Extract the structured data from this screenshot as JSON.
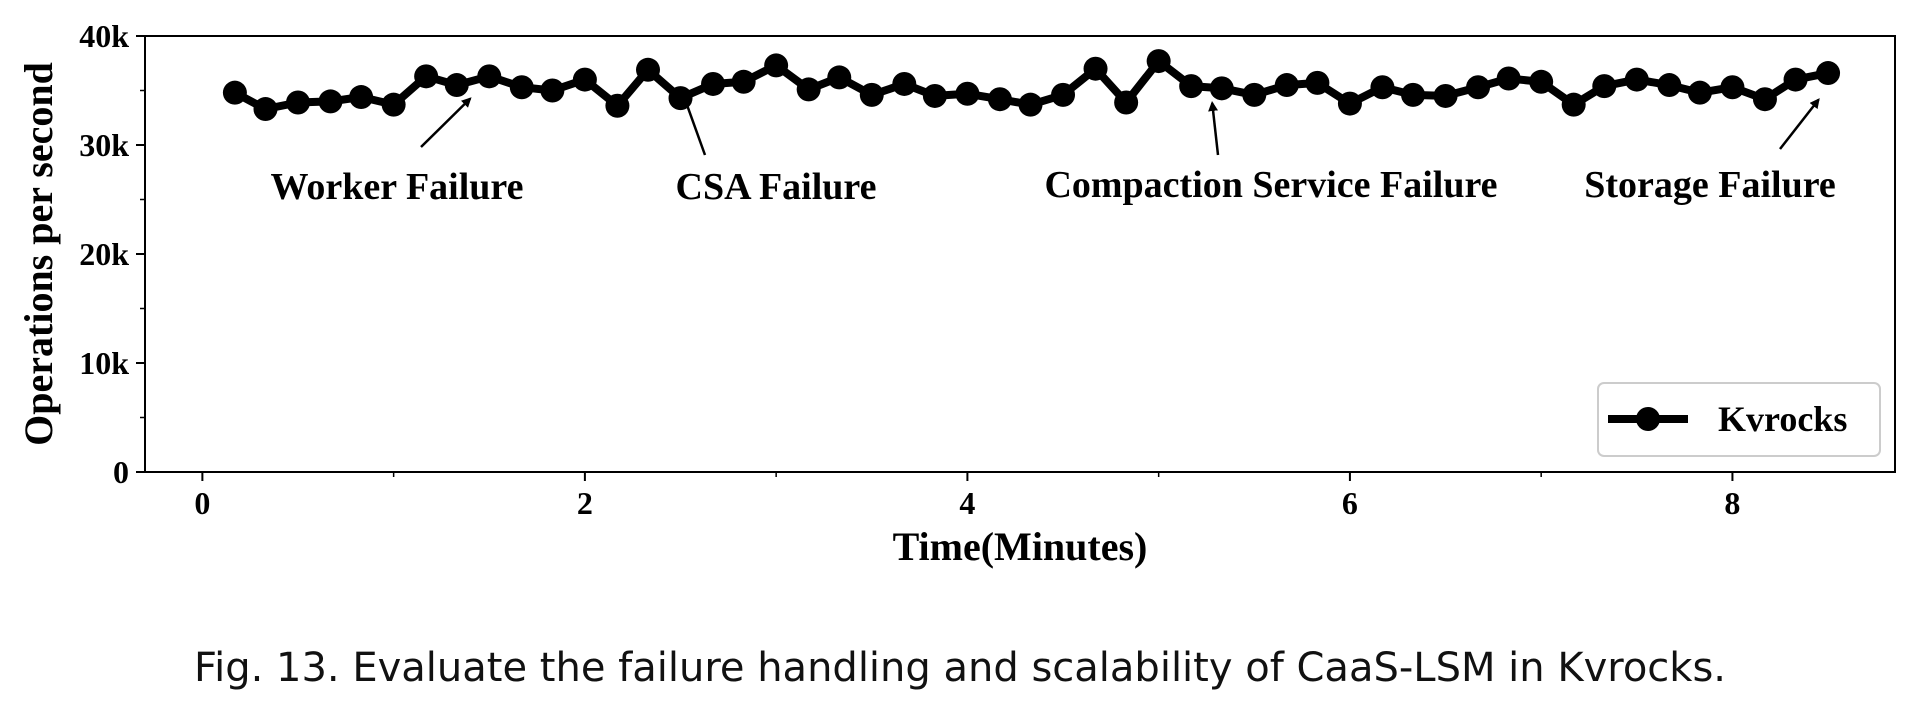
{
  "caption": "Fig. 13.  Evaluate the failure handling and scalability of CaaS-LSM in Kvrocks.",
  "chart_data": {
    "type": "line",
    "xlabel": "Time(Minutes)",
    "ylabel": "Operations per second",
    "xlim": [
      -0.3,
      8.85
    ],
    "ylim": [
      0,
      40000
    ],
    "xticks": [
      0,
      2,
      4,
      6,
      8
    ],
    "yticks": [
      0,
      10000,
      20000,
      30000,
      40000
    ],
    "ytick_labels": [
      "0",
      "10k",
      "20k",
      "30k",
      "40k"
    ],
    "legend": {
      "position": "lower-right",
      "entries": [
        "Kvrocks"
      ]
    },
    "series": [
      {
        "name": "Kvrocks",
        "color": "#000000",
        "x": [
          0.17,
          0.33,
          0.5,
          0.67,
          0.83,
          1.0,
          1.17,
          1.33,
          1.5,
          1.67,
          1.83,
          2.0,
          2.17,
          2.33,
          2.5,
          2.67,
          2.83,
          3.0,
          3.17,
          3.33,
          3.5,
          3.67,
          3.83,
          4.0,
          4.17,
          4.33,
          4.5,
          4.67,
          4.83,
          5.0,
          5.17,
          5.33,
          5.5,
          5.67,
          5.83,
          6.0,
          6.17,
          6.33,
          6.5,
          6.67,
          6.83,
          7.0,
          7.17,
          7.33,
          7.5,
          7.67,
          7.83,
          8.0,
          8.17,
          8.33,
          8.5
        ],
        "y": [
          34800,
          33300,
          33900,
          34000,
          34400,
          33700,
          36300,
          35500,
          36300,
          35300,
          35000,
          36000,
          33600,
          36900,
          34300,
          35600,
          35800,
          37300,
          35100,
          36200,
          34600,
          35600,
          34500,
          34700,
          34200,
          33700,
          34600,
          37000,
          33900,
          37700,
          35400,
          35200,
          34600,
          35500,
          35700,
          33800,
          35300,
          34600,
          34500,
          35300,
          36100,
          35800,
          33700,
          35400,
          36000,
          35500,
          34800,
          35300,
          34200,
          36000,
          36600
        ]
      }
    ],
    "annotations": [
      {
        "text": "Worker Failure",
        "arrow_to": [
          1.4,
          33700
        ]
      },
      {
        "text": "CSA Failure",
        "arrow_to": [
          2.52,
          33800
        ]
      },
      {
        "text": "Compaction Service Failure",
        "arrow_to": [
          5.28,
          33300
        ]
      },
      {
        "text": "Storage Failure",
        "arrow_to": [
          8.45,
          33600
        ]
      }
    ]
  }
}
